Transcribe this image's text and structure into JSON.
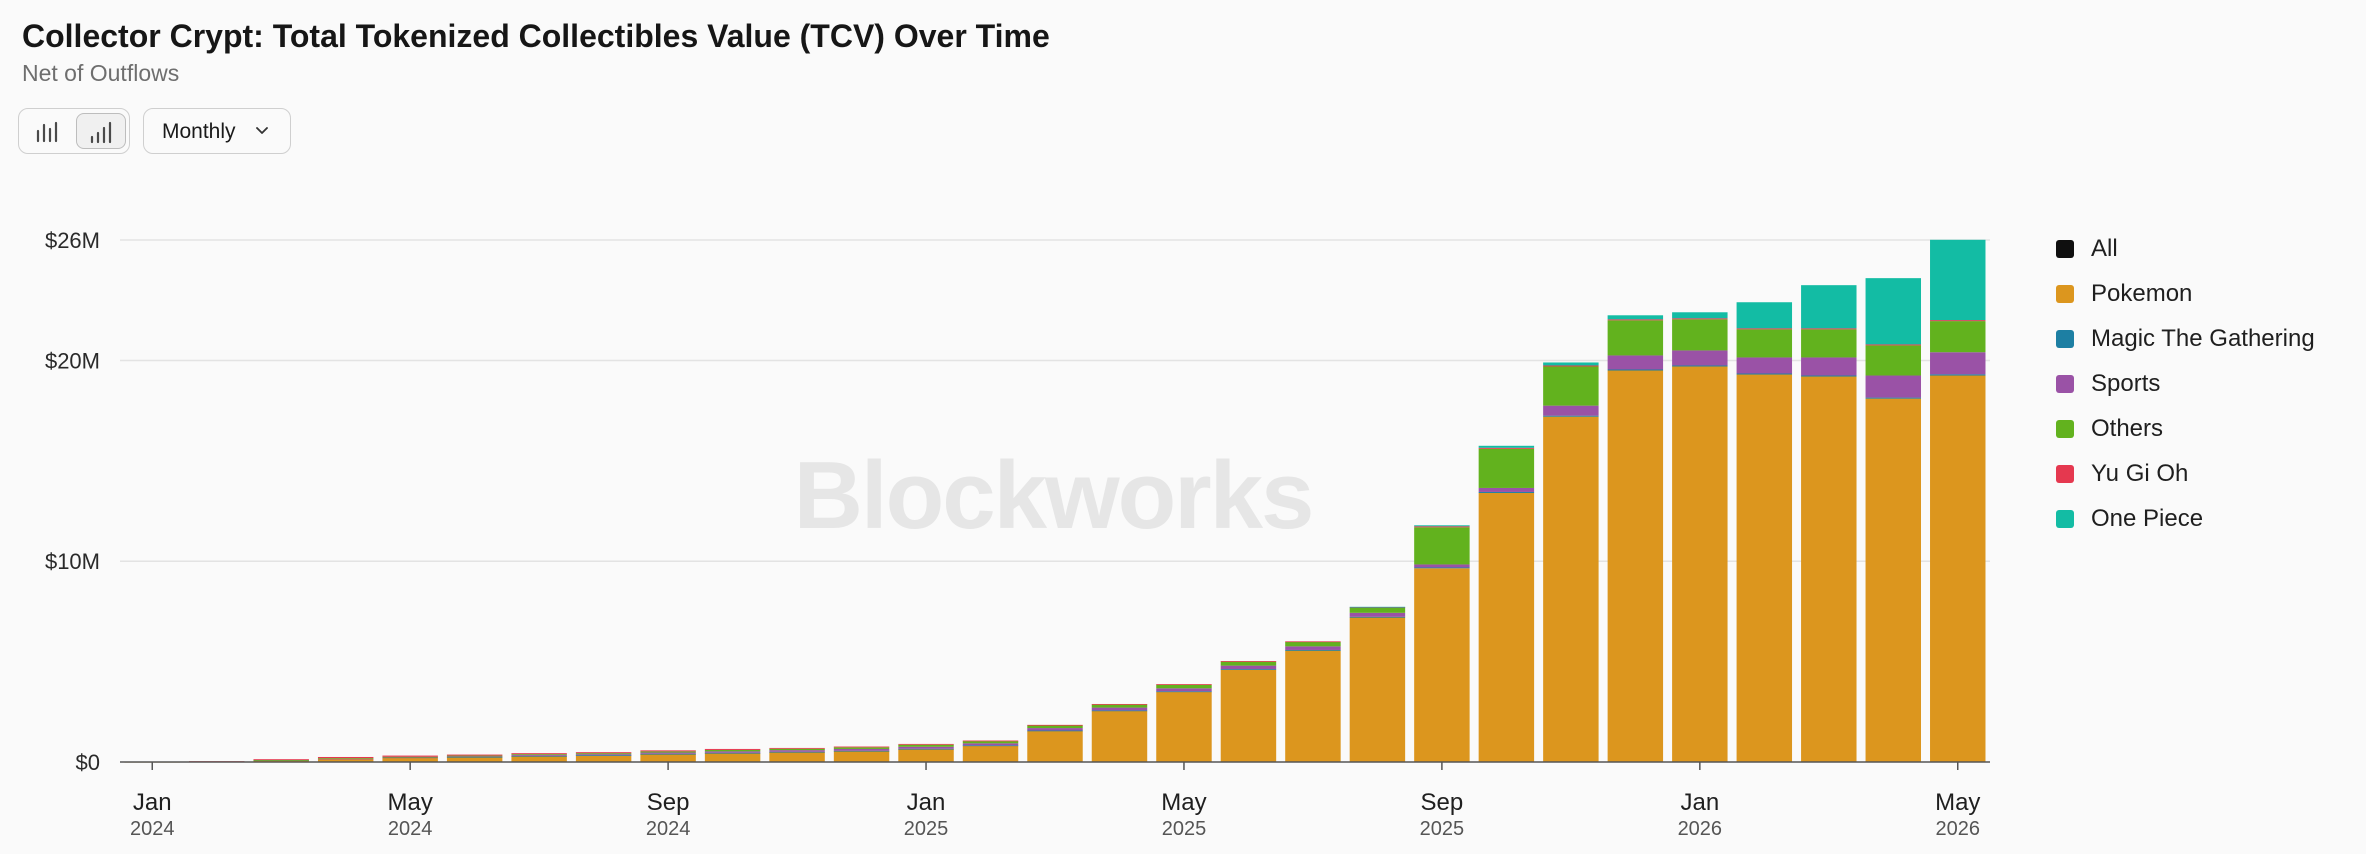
{
  "header": {
    "title": "Collector Crypt: Total Tokenized Collectibles Value (TCV) Over Time",
    "subtitle": "Net of Outflows"
  },
  "controls": {
    "view_icons": [
      "bar-chart-icon",
      "bar-chart-ascending-icon"
    ],
    "period": "Monthly"
  },
  "watermark": "Blockworks",
  "legend": [
    {
      "label": "All",
      "color": "#0f0f0f"
    },
    {
      "label": "Pokemon",
      "color": "#dc961e"
    },
    {
      "label": "Magic The Gathering",
      "color": "#1d7fa3"
    },
    {
      "label": "Sports",
      "color": "#9a52a6"
    },
    {
      "label": "Others",
      "color": "#62b21e"
    },
    {
      "label": "Yu Gi Oh",
      "color": "#e5384f"
    },
    {
      "label": "One Piece",
      "color": "#13bca4"
    }
  ],
  "chart_data": {
    "type": "bar",
    "stacked": true,
    "ylim": [
      0,
      26
    ],
    "y_ticks": [
      {
        "value": 0,
        "label": "$0"
      },
      {
        "value": 10,
        "label": "$10M"
      },
      {
        "value": 20,
        "label": "$20M"
      },
      {
        "value": 26,
        "label": "$26M"
      }
    ],
    "grid": true,
    "legend_position": "right",
    "x_ticks": [
      {
        "index": 0,
        "month": "Jan",
        "year": "2024"
      },
      {
        "index": 4,
        "month": "May",
        "year": "2024"
      },
      {
        "index": 8,
        "month": "Sep",
        "year": "2024"
      },
      {
        "index": 12,
        "month": "Jan",
        "year": "2025"
      },
      {
        "index": 16,
        "month": "May",
        "year": "2025"
      },
      {
        "index": 20,
        "month": "Sep",
        "year": "2025"
      },
      {
        "index": 24,
        "month": "Jan",
        "year": "2026"
      },
      {
        "index": 28,
        "month": "May",
        "year": "2026"
      }
    ],
    "categories": [
      "Jan 2024",
      "Feb 2024",
      "Mar 2024",
      "Apr 2024",
      "May 2024",
      "Jun 2024",
      "Jul 2024",
      "Aug 2024",
      "Sep 2024",
      "Oct 2024",
      "Nov 2024",
      "Dec 2024",
      "Jan 2025",
      "Feb 2025",
      "Mar 2025",
      "Apr 2025",
      "May 2025",
      "Jun 2025",
      "Jul 2025",
      "Aug 2025",
      "Sep 2025",
      "Oct 2025",
      "Nov 2025",
      "Dec 2025",
      "Jan 2026",
      "Feb 2026",
      "Mar 2026",
      "Apr 2026",
      "May 2026"
    ],
    "series": [
      {
        "name": "Pokemon",
        "color": "#dc961e",
        "values": [
          0.01,
          0.03,
          0.08,
          0.15,
          0.2,
          0.25,
          0.3,
          0.33,
          0.4,
          0.45,
          0.5,
          0.55,
          0.65,
          0.82,
          1.55,
          2.55,
          3.5,
          4.6,
          5.55,
          7.2,
          9.65,
          13.4,
          17.2,
          19.5,
          19.7,
          19.3,
          19.2,
          18.1,
          19.25
        ]
      },
      {
        "name": "Magic The Gathering",
        "color": "#1d7fa3",
        "values": [
          0,
          0,
          0,
          0,
          0,
          0.01,
          0.01,
          0.01,
          0.01,
          0.01,
          0.01,
          0.01,
          0.01,
          0.01,
          0.02,
          0.02,
          0.02,
          0.03,
          0.03,
          0.03,
          0.04,
          0.05,
          0.05,
          0.05,
          0.05,
          0.05,
          0.05,
          0.05,
          0.06
        ]
      },
      {
        "name": "Sports",
        "color": "#9a52a6",
        "values": [
          0,
          0,
          0.01,
          0.02,
          0.03,
          0.03,
          0.04,
          0.05,
          0.06,
          0.07,
          0.08,
          0.09,
          0.1,
          0.1,
          0.12,
          0.14,
          0.15,
          0.17,
          0.18,
          0.2,
          0.15,
          0.2,
          0.5,
          0.7,
          0.75,
          0.8,
          0.9,
          1.1,
          1.1
        ]
      },
      {
        "name": "Others",
        "color": "#62b21e",
        "values": [
          0,
          0,
          0.01,
          0.02,
          0.03,
          0.03,
          0.04,
          0.05,
          0.06,
          0.07,
          0.07,
          0.08,
          0.1,
          0.11,
          0.13,
          0.15,
          0.18,
          0.2,
          0.22,
          0.25,
          1.85,
          1.95,
          1.95,
          1.75,
          1.55,
          1.4,
          1.4,
          1.5,
          1.55
        ]
      },
      {
        "name": "Yu Gi Oh",
        "color": "#e5384f",
        "values": [
          0.005,
          0.01,
          0.04,
          0.06,
          0.06,
          0.05,
          0.05,
          0.05,
          0.05,
          0.05,
          0.04,
          0.04,
          0.04,
          0.03,
          0.03,
          0.03,
          0.03,
          0.03,
          0.03,
          0.03,
          0.05,
          0.05,
          0.05,
          0.05,
          0.05,
          0.05,
          0.05,
          0.05,
          0.05
        ]
      },
      {
        "name": "One Piece",
        "color": "#13bca4",
        "values": [
          0,
          0,
          0,
          0,
          0,
          0,
          0,
          0,
          0,
          0,
          0,
          0,
          0,
          0,
          0,
          0,
          0,
          0,
          0,
          0.02,
          0.05,
          0.1,
          0.15,
          0.2,
          0.3,
          1.3,
          2.15,
          3.3,
          4.0
        ]
      }
    ]
  }
}
